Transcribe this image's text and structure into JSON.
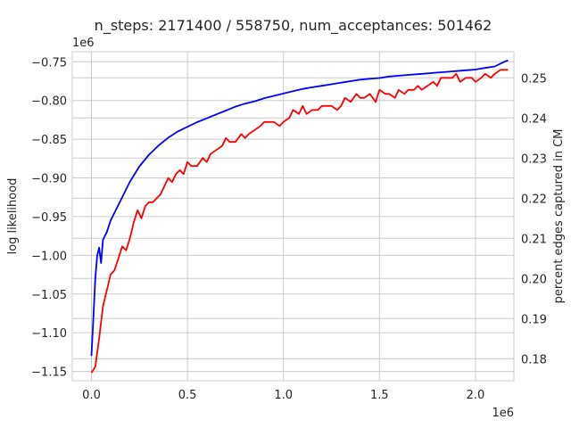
{
  "chart_data": {
    "type": "line",
    "title": "n_steps: 2171400 / 558750, num_acceptances: 501462",
    "xlabel": "",
    "x_offset_text": "1e6",
    "y_offset_text": "1e6",
    "ylabel": "log likelihood",
    "y2label": "percent edges captured in CM",
    "xlim": [
      -0.1,
      2.2
    ],
    "ylim": [
      -1.162,
      -0.737
    ],
    "y2lim": [
      0.1745,
      0.2565
    ],
    "x_ticks": [
      0.0,
      0.5,
      1.0,
      1.5,
      2.0
    ],
    "x_tick_labels": [
      "0.0",
      "0.5",
      "1.0",
      "1.5",
      "2.0"
    ],
    "y_ticks": [
      -1.15,
      -1.1,
      -1.05,
      -1.0,
      -0.95,
      -0.9,
      -0.85,
      -0.8,
      -0.75
    ],
    "y_tick_labels": [
      "−1.15",
      "−1.10",
      "−1.05",
      "−1.00",
      "−0.95",
      "−0.90",
      "−0.85",
      "−0.80",
      "−0.75"
    ],
    "y2_ticks": [
      0.18,
      0.19,
      0.2,
      0.21,
      0.22,
      0.23,
      0.24,
      0.25
    ],
    "y2_tick_labels": [
      "0.18",
      "0.19",
      "0.20",
      "0.21",
      "0.22",
      "0.23",
      "0.24",
      "0.25"
    ],
    "grid": true,
    "series": [
      {
        "axis": "left",
        "color": "#0000ff",
        "x": [
          0.0,
          0.01,
          0.02,
          0.03,
          0.04,
          0.05,
          0.06,
          0.08,
          0.1,
          0.12,
          0.15,
          0.18,
          0.2,
          0.25,
          0.3,
          0.35,
          0.4,
          0.45,
          0.5,
          0.55,
          0.6,
          0.65,
          0.7,
          0.75,
          0.8,
          0.85,
          0.9,
          0.95,
          1.0,
          1.05,
          1.1,
          1.15,
          1.2,
          1.25,
          1.3,
          1.35,
          1.4,
          1.45,
          1.5,
          1.55,
          1.6,
          1.65,
          1.7,
          1.75,
          1.8,
          1.85,
          1.9,
          1.95,
          2.0,
          2.05,
          2.1,
          2.15,
          2.17
        ],
        "y": [
          -1.13,
          -1.08,
          -1.03,
          -1.0,
          -0.99,
          -1.01,
          -0.98,
          -0.97,
          -0.955,
          -0.945,
          -0.93,
          -0.915,
          -0.905,
          -0.885,
          -0.87,
          -0.858,
          -0.848,
          -0.84,
          -0.834,
          -0.828,
          -0.823,
          -0.818,
          -0.813,
          -0.808,
          -0.804,
          -0.801,
          -0.797,
          -0.794,
          -0.791,
          -0.788,
          -0.785,
          -0.783,
          -0.781,
          -0.779,
          -0.777,
          -0.775,
          -0.773,
          -0.772,
          -0.771,
          -0.769,
          -0.768,
          -0.767,
          -0.766,
          -0.765,
          -0.764,
          -0.763,
          -0.762,
          -0.761,
          -0.76,
          -0.758,
          -0.756,
          -0.75,
          -0.748
        ]
      },
      {
        "axis": "right",
        "color": "#ff0000",
        "x": [
          0.0,
          0.02,
          0.04,
          0.06,
          0.08,
          0.1,
          0.12,
          0.14,
          0.16,
          0.18,
          0.2,
          0.22,
          0.24,
          0.26,
          0.28,
          0.3,
          0.32,
          0.34,
          0.36,
          0.38,
          0.4,
          0.42,
          0.44,
          0.46,
          0.48,
          0.5,
          0.52,
          0.55,
          0.58,
          0.6,
          0.62,
          0.65,
          0.68,
          0.7,
          0.72,
          0.75,
          0.78,
          0.8,
          0.82,
          0.85,
          0.88,
          0.9,
          0.93,
          0.95,
          0.98,
          1.0,
          1.03,
          1.05,
          1.08,
          1.1,
          1.12,
          1.15,
          1.18,
          1.2,
          1.23,
          1.25,
          1.28,
          1.3,
          1.32,
          1.35,
          1.38,
          1.4,
          1.42,
          1.45,
          1.48,
          1.5,
          1.53,
          1.55,
          1.58,
          1.6,
          1.63,
          1.65,
          1.68,
          1.7,
          1.72,
          1.75,
          1.78,
          1.8,
          1.82,
          1.85,
          1.88,
          1.9,
          1.92,
          1.95,
          1.98,
          2.0,
          2.03,
          2.05,
          2.08,
          2.1,
          2.13,
          2.15,
          2.17
        ],
        "y": [
          0.1765,
          0.178,
          0.185,
          0.193,
          0.197,
          0.201,
          0.202,
          0.205,
          0.208,
          0.207,
          0.21,
          0.214,
          0.217,
          0.215,
          0.218,
          0.219,
          0.219,
          0.22,
          0.221,
          0.223,
          0.225,
          0.224,
          0.226,
          0.227,
          0.226,
          0.229,
          0.228,
          0.228,
          0.23,
          0.229,
          0.231,
          0.232,
          0.233,
          0.235,
          0.234,
          0.234,
          0.236,
          0.235,
          0.236,
          0.237,
          0.238,
          0.239,
          0.239,
          0.239,
          0.238,
          0.239,
          0.24,
          0.242,
          0.241,
          0.243,
          0.241,
          0.242,
          0.242,
          0.243,
          0.243,
          0.243,
          0.242,
          0.243,
          0.245,
          0.244,
          0.246,
          0.245,
          0.245,
          0.246,
          0.244,
          0.247,
          0.246,
          0.246,
          0.245,
          0.247,
          0.246,
          0.247,
          0.247,
          0.248,
          0.247,
          0.248,
          0.249,
          0.248,
          0.25,
          0.25,
          0.25,
          0.251,
          0.249,
          0.25,
          0.25,
          0.249,
          0.25,
          0.251,
          0.25,
          0.251,
          0.252,
          0.252,
          0.252
        ]
      }
    ]
  }
}
